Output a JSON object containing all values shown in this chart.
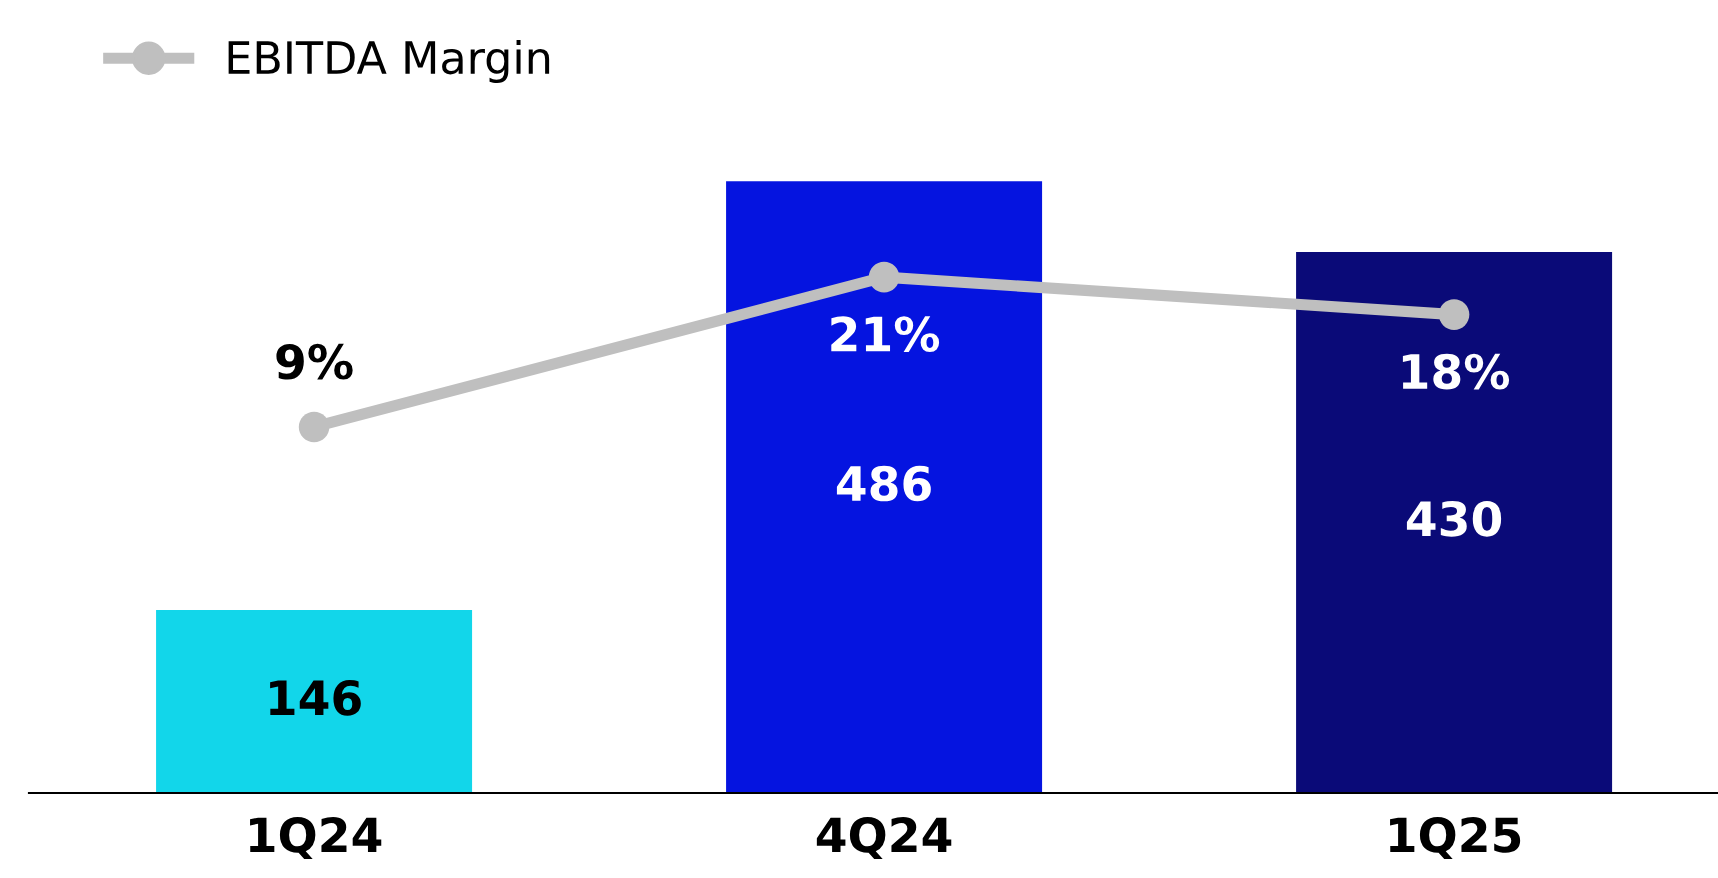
{
  "chart_data": {
    "type": "bar",
    "categories": [
      "1Q24",
      "4Q24",
      "1Q25"
    ],
    "series": [
      {
        "colors": [
          "#12d6ea",
          "#0514e0",
          "#0a0a78"
        ],
        "values": [
          146,
          486,
          430
        ],
        "value_labels": [
          "146",
          "486",
          "430"
        ]
      },
      {
        "type": "line",
        "name": "EBITDA Margin",
        "color": "#bfbfbf",
        "axis": "y2",
        "marker": "circle",
        "values": [
          9,
          21,
          18
        ],
        "value_labels": [
          "9%",
          "21%",
          "18%"
        ]
      }
    ],
    "tick_labels": "x",
    "grid": false,
    "legend": "top left"
  }
}
